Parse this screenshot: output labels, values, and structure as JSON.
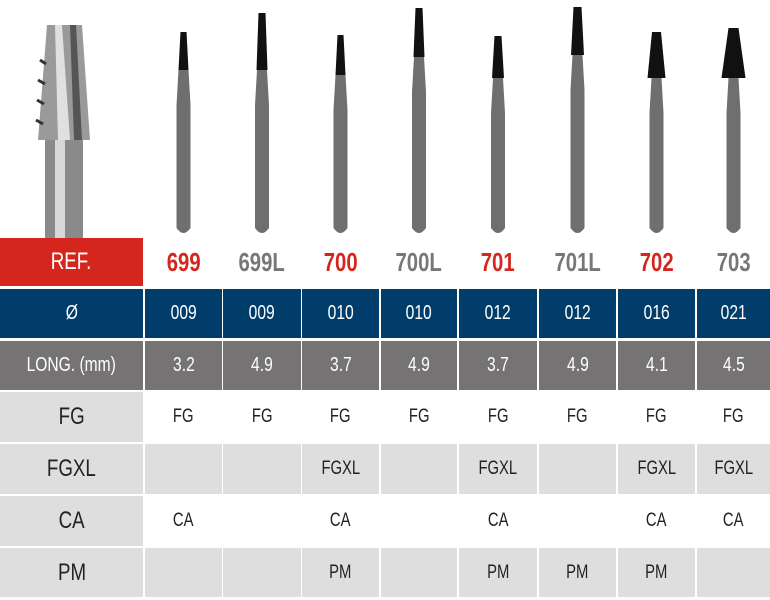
{
  "colors": {
    "ref_red": "#d4261c",
    "navy": "#003d6a",
    "gray": "#757374",
    "light": "#dedede",
    "red_text": "#d4261c",
    "gray_text": "#777777"
  },
  "row_labels": {
    "ref": "REF.",
    "diameter": "Ø",
    "length": "LONG. (mm)",
    "fg": "FG",
    "fgxl": "FGXL",
    "ca": "CA",
    "pm": "PM"
  },
  "products": [
    {
      "ref": "699",
      "ref_color": "red",
      "diameter": "009",
      "length": "3.2",
      "fg": "FG",
      "fgxl": "",
      "ca": "CA",
      "pm": ""
    },
    {
      "ref": "699L",
      "ref_color": "gray",
      "diameter": "009",
      "length": "4.9",
      "fg": "FG",
      "fgxl": "",
      "ca": "",
      "pm": ""
    },
    {
      "ref": "700",
      "ref_color": "red",
      "diameter": "010",
      "length": "3.7",
      "fg": "FG",
      "fgxl": "FGXL",
      "ca": "CA",
      "pm": "PM"
    },
    {
      "ref": "700L",
      "ref_color": "gray",
      "diameter": "010",
      "length": "4.9",
      "fg": "FG",
      "fgxl": "",
      "ca": "",
      "pm": ""
    },
    {
      "ref": "701",
      "ref_color": "red",
      "diameter": "012",
      "length": "3.7",
      "fg": "FG",
      "fgxl": "FGXL",
      "ca": "CA",
      "pm": "PM"
    },
    {
      "ref": "701L",
      "ref_color": "gray",
      "diameter": "012",
      "length": "4.9",
      "fg": "FG",
      "fgxl": "",
      "ca": "",
      "pm": "PM"
    },
    {
      "ref": "702",
      "ref_color": "red",
      "diameter": "016",
      "length": "4.1",
      "fg": "FG",
      "fgxl": "FGXL",
      "ca": "CA",
      "pm": "PM"
    },
    {
      "ref": "703",
      "ref_color": "gray",
      "diameter": "021",
      "length": "4.5",
      "fg": "FG",
      "fgxl": "FGXL",
      "ca": "CA",
      "pm": ""
    }
  ]
}
